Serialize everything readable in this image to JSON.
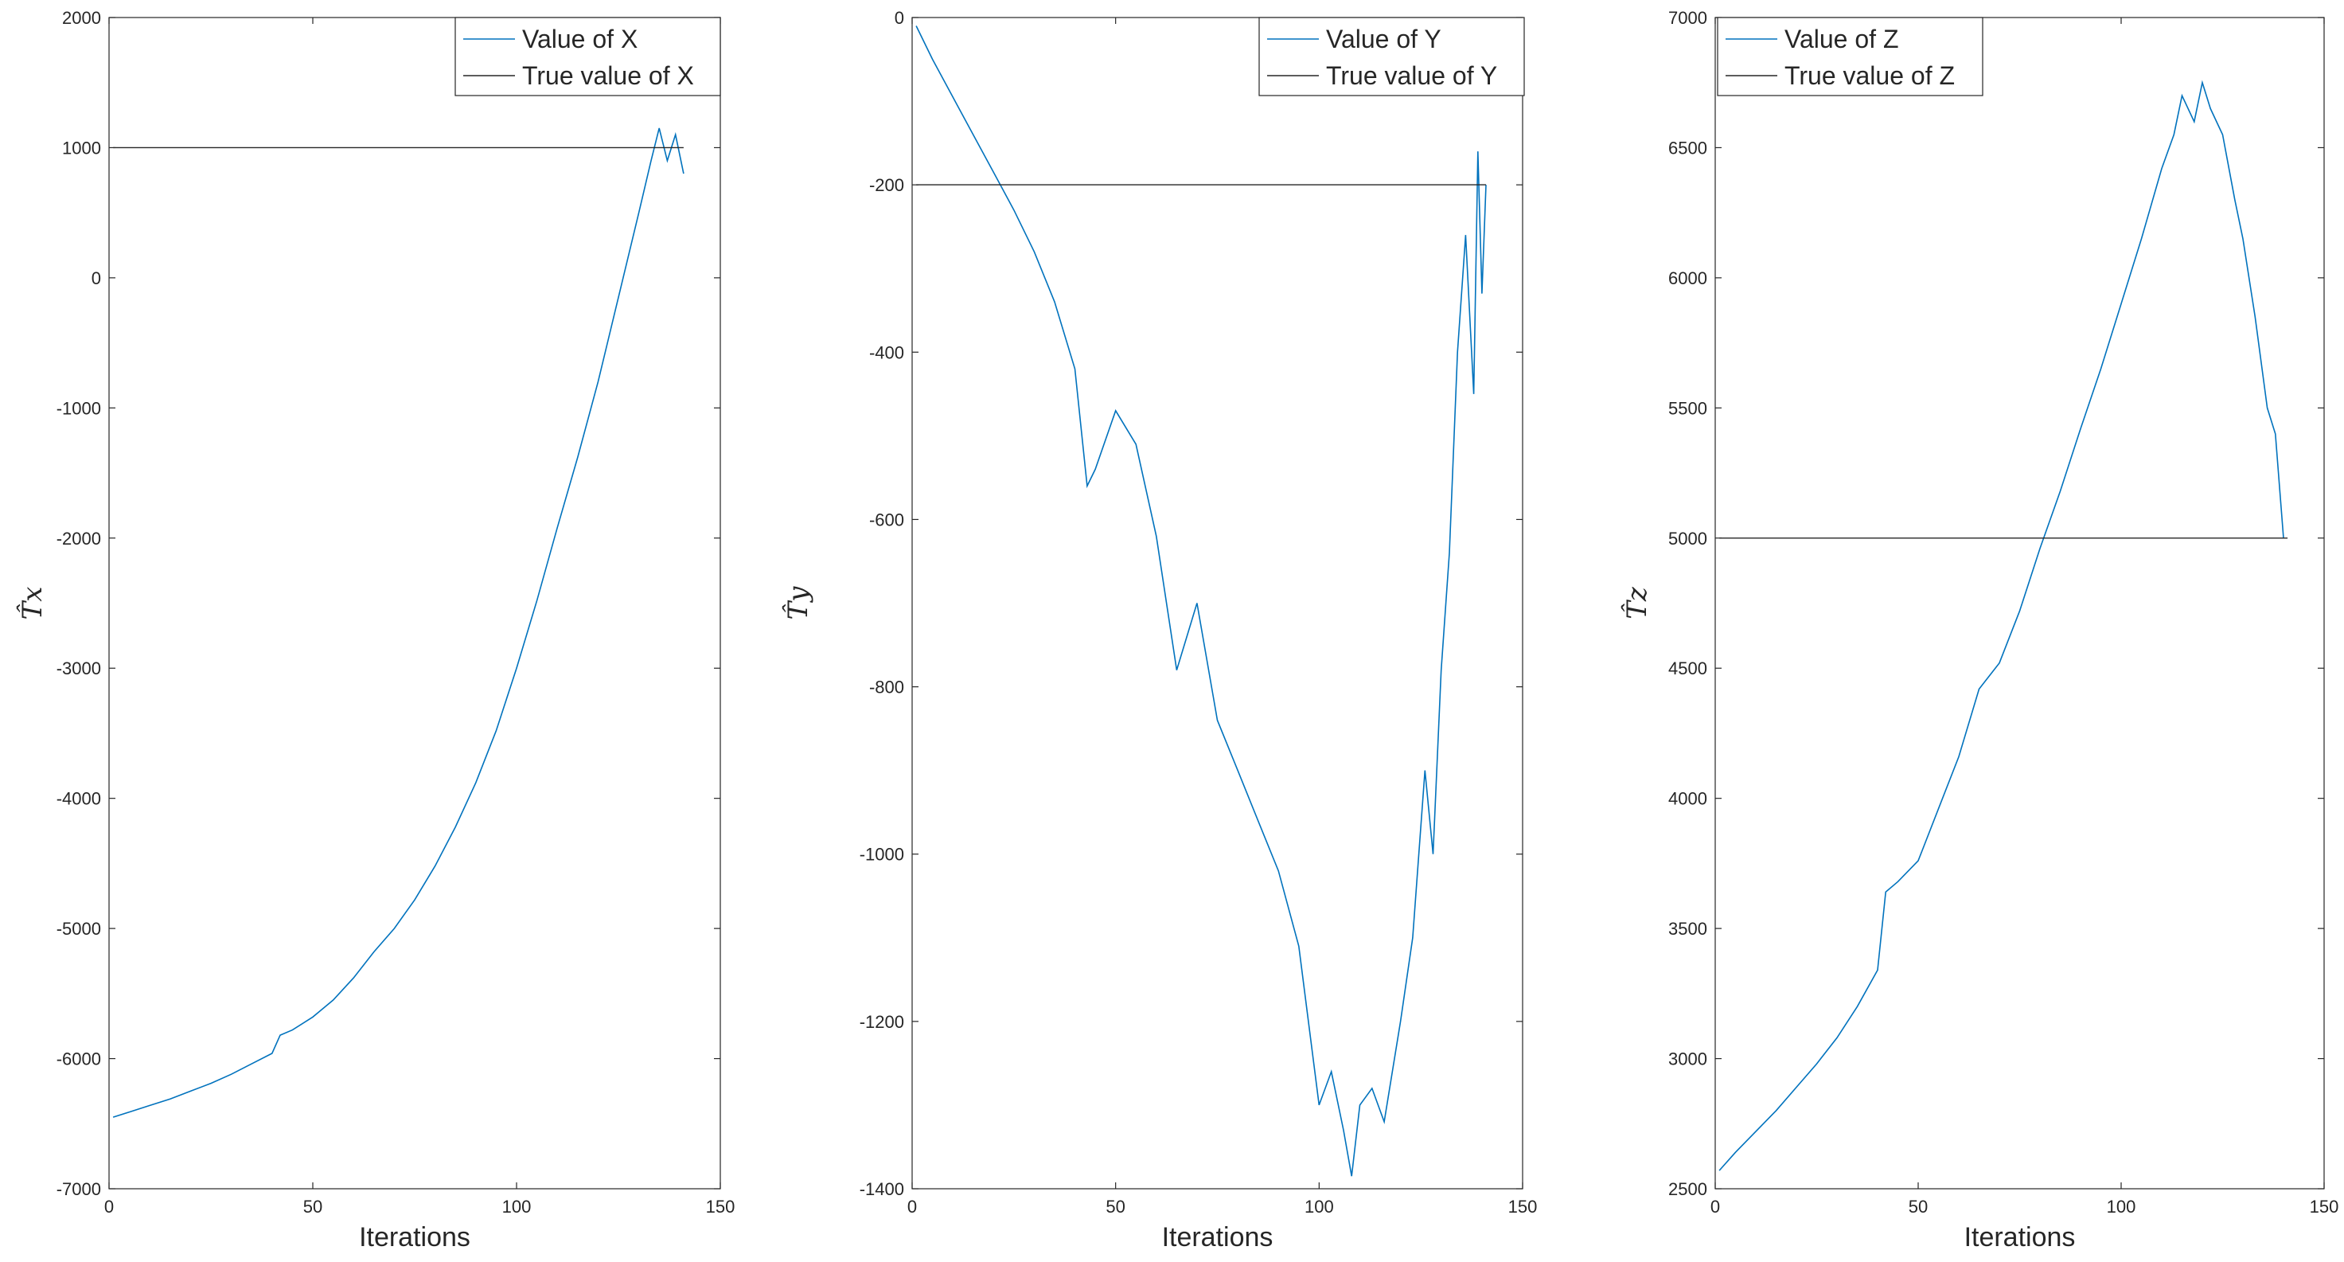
{
  "chart_data": [
    {
      "type": "line",
      "xlabel": "Iterations",
      "ylabel": "T̂x",
      "xlim": [
        0,
        150
      ],
      "ylim": [
        -7000,
        2000
      ],
      "xticks": [
        "0",
        "50",
        "100",
        "150"
      ],
      "yticks": [
        "2000",
        "1000",
        "0",
        "-1000",
        "-2000",
        "-3000",
        "-4000",
        "-5000",
        "-6000",
        "-7000"
      ],
      "legend_position": "top-right",
      "series": [
        {
          "name": "Value of X",
          "color": "#0072BD",
          "x": [
            1,
            5,
            10,
            15,
            20,
            25,
            30,
            35,
            40,
            42,
            45,
            50,
            55,
            60,
            65,
            70,
            75,
            80,
            85,
            90,
            95,
            100,
            105,
            110,
            115,
            120,
            125,
            130,
            133,
            135,
            137,
            139,
            141
          ],
          "values": [
            -6450,
            -6410,
            -6360,
            -6310,
            -6250,
            -6190,
            -6120,
            -6040,
            -5960,
            -5820,
            -5780,
            -5680,
            -5550,
            -5380,
            -5180,
            -5000,
            -4780,
            -4520,
            -4220,
            -3880,
            -3480,
            -3000,
            -2480,
            -1920,
            -1380,
            -800,
            -150,
            500,
            900,
            1150,
            900,
            1100,
            800
          ]
        },
        {
          "name": "True value of X",
          "color": "#262626",
          "x": [
            1,
            141
          ],
          "values": [
            1000,
            1000
          ]
        }
      ]
    },
    {
      "type": "line",
      "xlabel": "Iterations",
      "ylabel": "T̂y",
      "xlim": [
        0,
        150
      ],
      "ylim": [
        -1400,
        0
      ],
      "xticks": [
        "0",
        "50",
        "100",
        "150"
      ],
      "yticks": [
        "0",
        "-200",
        "-400",
        "-600",
        "-800",
        "-1000",
        "-1200",
        "-1400"
      ],
      "legend_position": "top-right",
      "series": [
        {
          "name": "Value of Y",
          "color": "#0072BD",
          "x": [
            1,
            5,
            10,
            15,
            20,
            25,
            30,
            35,
            40,
            43,
            45,
            50,
            55,
            60,
            65,
            70,
            75,
            80,
            85,
            90,
            95,
            100,
            103,
            106,
            108,
            110,
            113,
            116,
            120,
            123,
            126,
            128,
            130,
            132,
            134,
            136,
            138,
            139,
            140,
            141
          ],
          "values": [
            -10,
            -50,
            -95,
            -140,
            -185,
            -230,
            -280,
            -340,
            -420,
            -560,
            -540,
            -470,
            -510,
            -620,
            -780,
            -700,
            -840,
            -900,
            -960,
            -1020,
            -1110,
            -1300,
            -1260,
            -1330,
            -1385,
            -1300,
            -1280,
            -1320,
            -1200,
            -1100,
            -900,
            -1000,
            -780,
            -640,
            -400,
            -260,
            -450,
            -160,
            -330,
            -200
          ]
        },
        {
          "name": "True value of Y",
          "color": "#262626",
          "x": [
            1,
            141
          ],
          "values": [
            -200,
            -200
          ]
        }
      ]
    },
    {
      "type": "line",
      "xlabel": "Iterations",
      "ylabel": "T̂z",
      "xlim": [
        0,
        150
      ],
      "ylim": [
        2500,
        7000
      ],
      "xticks": [
        "0",
        "50",
        "100",
        "150"
      ],
      "yticks": [
        "7000",
        "6500",
        "6000",
        "5500",
        "5000",
        "4500",
        "4000",
        "3500",
        "3000",
        "2500"
      ],
      "legend_position": "top-right",
      "series": [
        {
          "name": "Value of Z",
          "color": "#0072BD",
          "x": [
            1,
            5,
            10,
            15,
            20,
            25,
            30,
            35,
            40,
            42,
            45,
            50,
            55,
            60,
            65,
            70,
            75,
            80,
            85,
            90,
            95,
            100,
            105,
            110,
            113,
            115,
            118,
            120,
            122,
            125,
            128,
            130,
            133,
            136,
            138,
            140
          ],
          "values": [
            2570,
            2640,
            2720,
            2800,
            2890,
            2980,
            3080,
            3200,
            3340,
            3640,
            3680,
            3760,
            3960,
            4160,
            4420,
            4520,
            4720,
            4960,
            5180,
            5420,
            5650,
            5900,
            6150,
            6420,
            6550,
            6700,
            6600,
            6750,
            6650,
            6550,
            6300,
            6150,
            5850,
            5500,
            5400,
            5000
          ]
        },
        {
          "name": "True value of Z",
          "color": "#262626",
          "x": [
            1,
            141
          ],
          "values": [
            5000,
            5000
          ]
        }
      ]
    }
  ]
}
